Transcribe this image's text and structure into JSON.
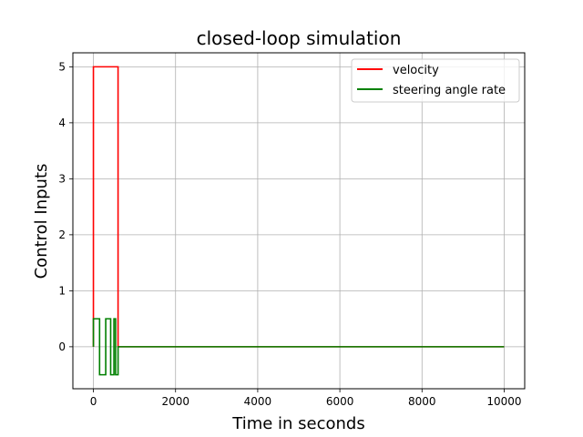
{
  "chart_data": {
    "type": "line",
    "title": "closed-loop simulation",
    "xlabel": "Time in seconds",
    "ylabel": "Control Inputs",
    "xlim": [
      -500,
      10500
    ],
    "ylim": [
      -0.75,
      5.25
    ],
    "xticks": [
      0,
      2000,
      4000,
      6000,
      8000,
      10000
    ],
    "xtick_labels": [
      "0",
      "2000",
      "4000",
      "6000",
      "8000",
      "10000"
    ],
    "yticks": [
      0,
      1,
      2,
      3,
      4,
      5
    ],
    "ytick_labels": [
      "0",
      "1",
      "2",
      "3",
      "4",
      "5"
    ],
    "grid": true,
    "legend_position": "top-right",
    "series": [
      {
        "name": "velocity",
        "color": "#ff0000",
        "x": [
          0,
          0,
          600,
          600,
          10000
        ],
        "y": [
          0,
          5,
          5,
          0,
          0
        ]
      },
      {
        "name": "steering angle rate",
        "color": "#008000",
        "x": [
          0,
          0,
          150,
          150,
          300,
          300,
          420,
          420,
          500,
          500,
          540,
          540,
          600,
          600,
          10000
        ],
        "y": [
          0,
          0.5,
          0.5,
          -0.5,
          -0.5,
          0.5,
          0.5,
          -0.5,
          -0.5,
          0.5,
          0.5,
          -0.5,
          -0.5,
          0,
          0
        ]
      }
    ]
  }
}
